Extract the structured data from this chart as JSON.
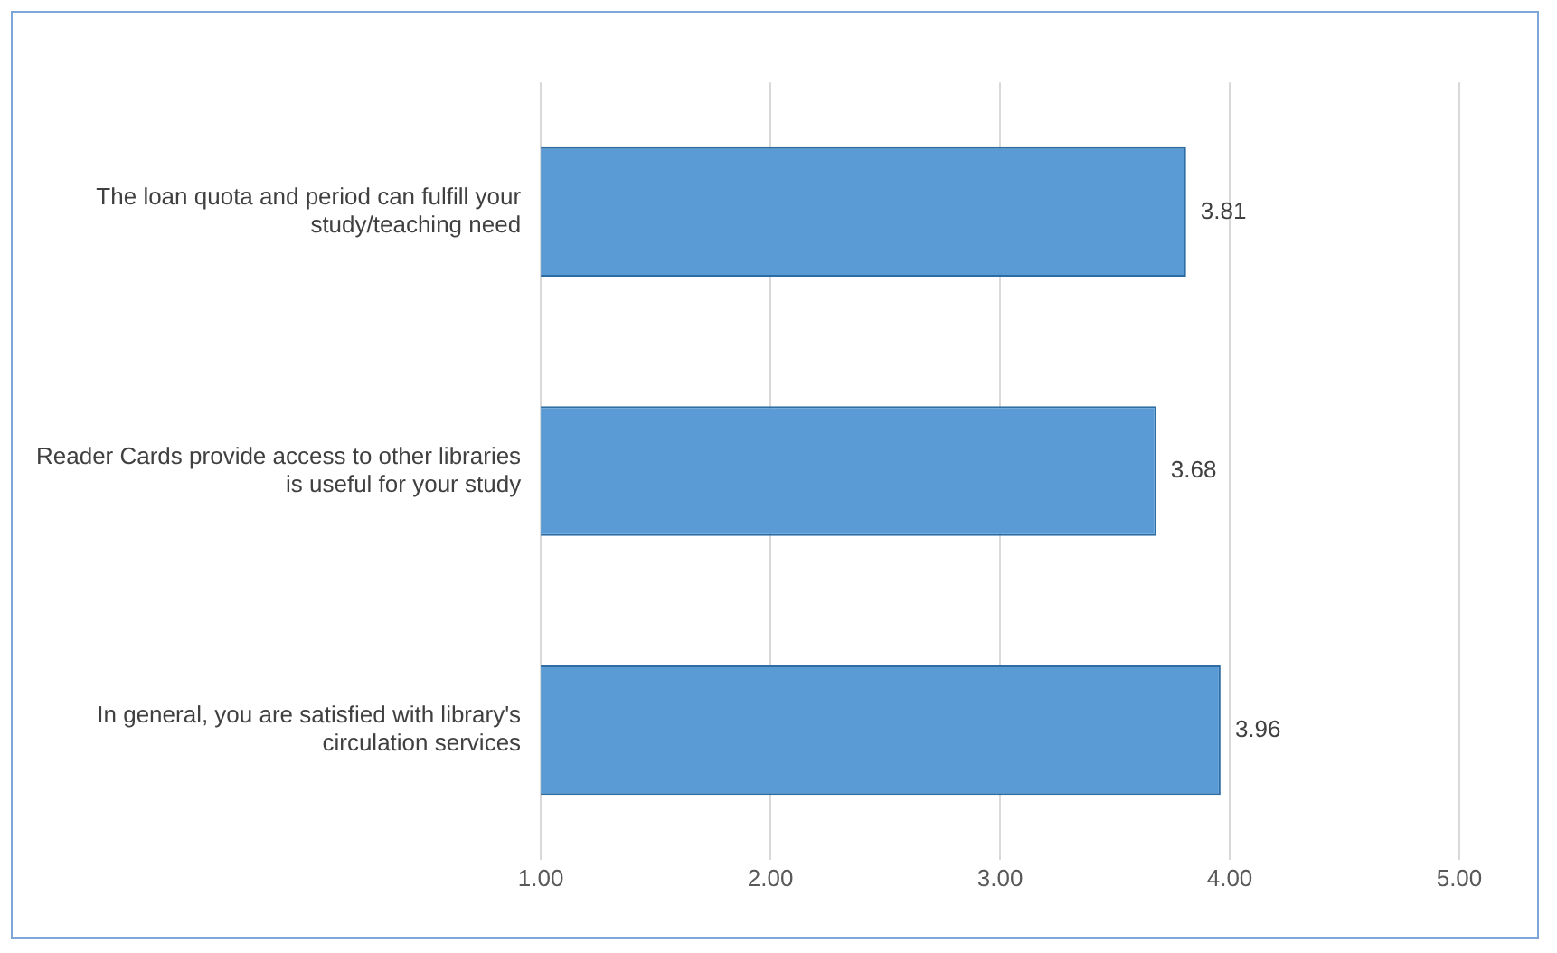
{
  "chart_data": {
    "type": "bar",
    "orientation": "horizontal",
    "categories": [
      "The loan quota and period can fulfill your study/teaching need",
      "Reader Cards provide access to other libraries is useful for your study",
      "In general, you are satisfied with library's circulation services"
    ],
    "values": [
      3.81,
      3.68,
      3.96
    ],
    "color": "#5b9bd5",
    "xlim": [
      1,
      5
    ],
    "xticks": [
      {
        "value": 1,
        "label": "1.00"
      },
      {
        "value": 2,
        "label": "2.00"
      },
      {
        "value": 3,
        "label": "3.00"
      },
      {
        "value": 4,
        "label": "4.00"
      },
      {
        "value": 5,
        "label": "5.00"
      }
    ],
    "grid": "x",
    "data_labels": true,
    "legend": false
  }
}
